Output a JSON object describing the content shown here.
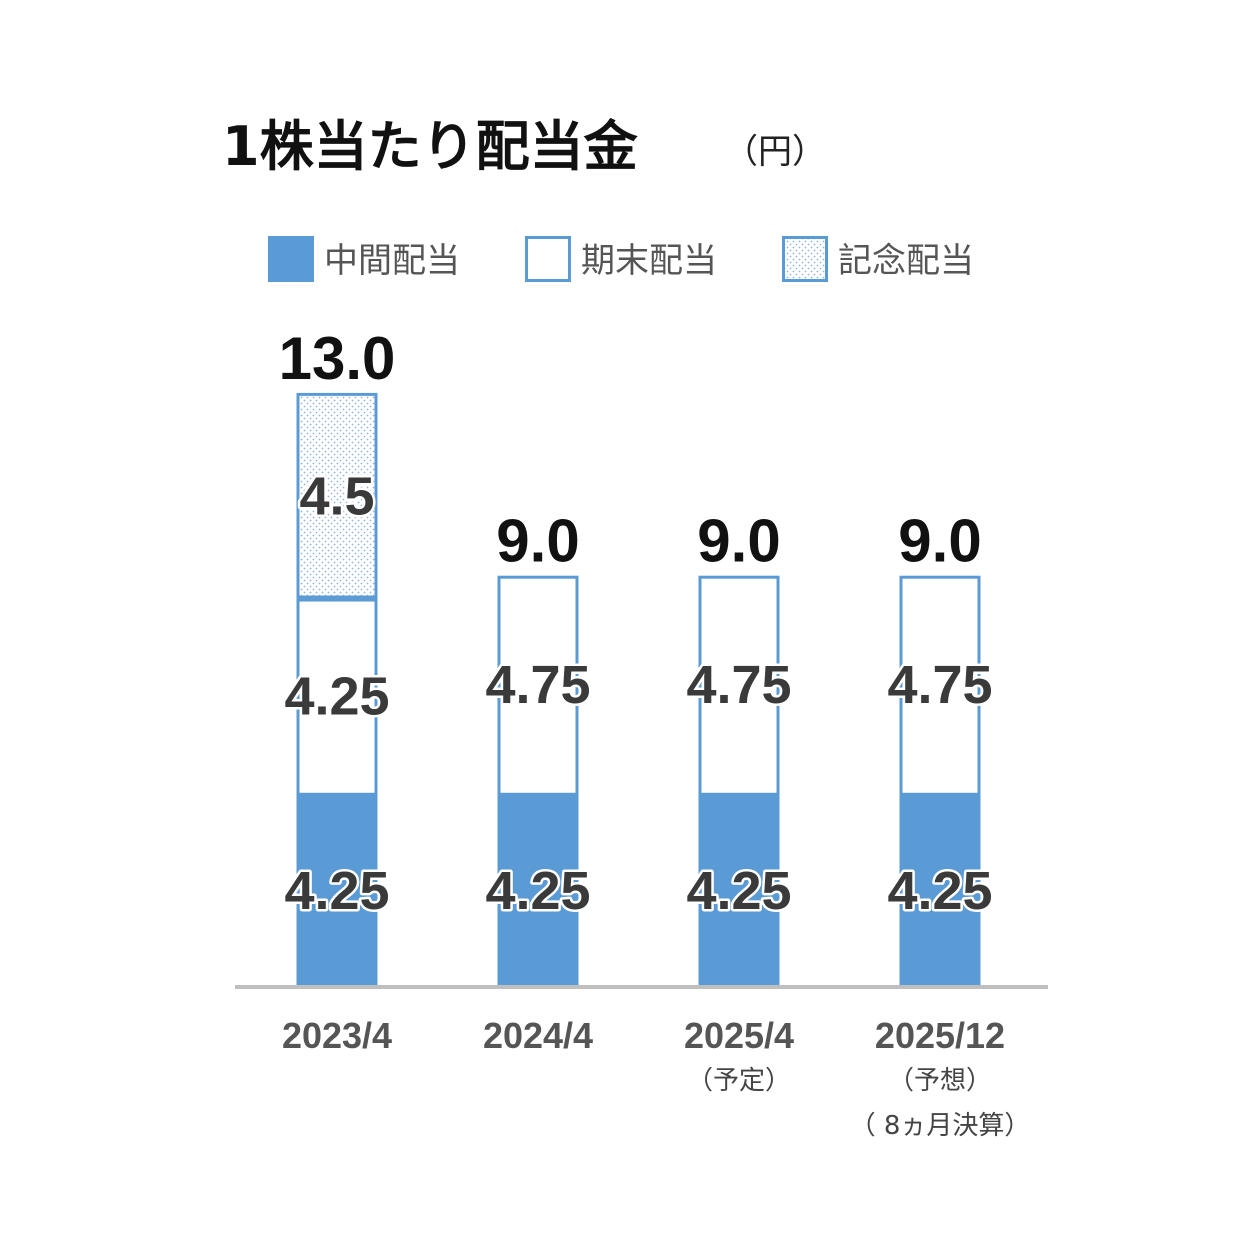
{
  "chart_data": {
    "type": "bar",
    "stacked": true,
    "title": "1株当たり配当金",
    "unit": "（円）",
    "categories": [
      "2023/4",
      "2024/4",
      "2025/4",
      "2025/12"
    ],
    "category_notes": [
      [],
      [],
      [
        "（予定）"
      ],
      [
        "（予想）",
        "（ 8ヵ月決算）"
      ]
    ],
    "series": [
      {
        "name": "中間配当",
        "values": [
          4.25,
          4.25,
          4.25,
          4.25
        ],
        "labels": [
          "4.25",
          "4.25",
          "4.25",
          "4.25"
        ],
        "style": "filled",
        "color": "#5b9bd5"
      },
      {
        "name": "期末配当",
        "values": [
          4.25,
          4.75,
          4.75,
          4.75
        ],
        "labels": [
          "4.25",
          "4.75",
          "4.75",
          "4.75"
        ],
        "style": "outline",
        "color": "#5b9bd5"
      },
      {
        "name": "記念配当",
        "values": [
          4.5,
          0,
          0,
          0
        ],
        "labels": [
          "4.5",
          "",
          "",
          ""
        ],
        "style": "dotted",
        "color": "#5b9bd5"
      }
    ],
    "totals": [
      "13.0",
      "9.0",
      "9.0",
      "9.0"
    ],
    "legend_position": "top",
    "grid": false,
    "ylim": [
      0,
      13
    ]
  }
}
